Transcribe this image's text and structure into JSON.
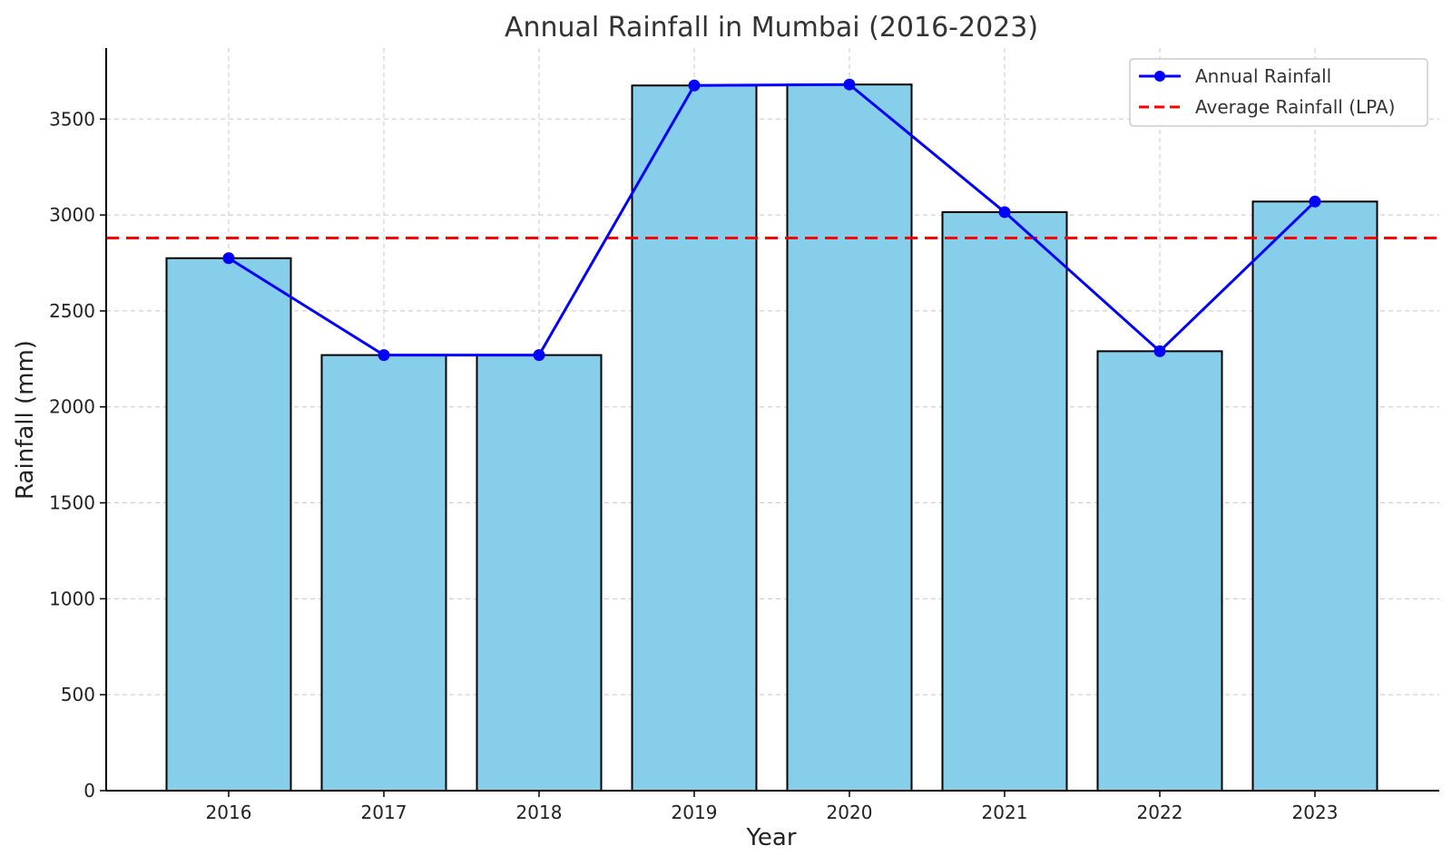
{
  "chart_data": {
    "type": "bar",
    "title": "Annual Rainfall in Mumbai (2016-2023)",
    "xlabel": "Year",
    "ylabel": "Rainfall (mm)",
    "categories": [
      "2016",
      "2017",
      "2018",
      "2019",
      "2020",
      "2021",
      "2022",
      "2023"
    ],
    "series": [
      {
        "name": "Annual Rainfall",
        "type": "bar+line",
        "values": [
          2775,
          2270,
          2270,
          3675,
          3680,
          3015,
          2290,
          3070
        ],
        "bar_color": "#87ceeb",
        "bar_edge_color": "#000000",
        "line_color": "#0000ff"
      }
    ],
    "reference_lines": [
      {
        "name": "Average Rainfall (LPA)",
        "value": 2880,
        "color": "#ff0000",
        "style": "dashed"
      }
    ],
    "ylim": [
      0,
      3870
    ],
    "yticks": [
      0,
      500,
      1000,
      1500,
      2000,
      2500,
      3000,
      3500
    ],
    "grid": true,
    "legend_position": "top-right"
  }
}
